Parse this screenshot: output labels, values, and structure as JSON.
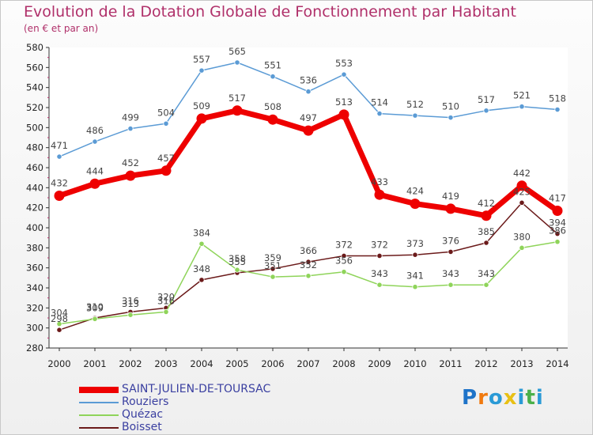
{
  "header": {
    "title": "Evolution de la Dotation Globale de Fonctionnement par Habitant",
    "subtitle": "(en € et par an)"
  },
  "logo": {
    "letters": [
      "P",
      "r",
      "o",
      "x",
      "i",
      "t",
      "i"
    ],
    "colors": [
      "#1e73c8",
      "#f07a10",
      "#2a9ad6",
      "#e8c014",
      "#2a9ad6",
      "#4ab04a",
      "#2a9ad6"
    ]
  },
  "chart_data": {
    "type": "line",
    "title": "Evolution de la Dotation Globale de Fonctionnement par Habitant",
    "subtitle": "(en € et par an)",
    "x": [
      "2000",
      "2001",
      "2002",
      "2003",
      "2004",
      "2005",
      "2006",
      "2007",
      "2008",
      "2009",
      "2010",
      "2011",
      "2012",
      "2013",
      "2014"
    ],
    "ylim": [
      280,
      580
    ],
    "yticks": [
      280,
      300,
      320,
      340,
      360,
      380,
      400,
      420,
      440,
      460,
      480,
      500,
      520,
      540,
      560,
      580
    ],
    "grid": false,
    "legend_position": "bottom-left",
    "series": [
      {
        "name": "SAINT-JULIEN-DE-TOURSAC",
        "color": "#ee0000",
        "values": [
          432,
          444,
          452,
          457,
          509,
          517,
          508,
          497,
          513,
          433,
          424,
          419,
          412,
          442,
          417
        ]
      },
      {
        "name": "Rouziers",
        "color": "#5b9bd5",
        "values": [
          471,
          486,
          499,
          504,
          557,
          565,
          551,
          536,
          553,
          514,
          512,
          510,
          517,
          521,
          518
        ]
      },
      {
        "name": "Quézac",
        "color": "#8fd45a",
        "values": [
          304,
          309,
          313,
          316,
          384,
          358,
          351,
          352,
          356,
          343,
          341,
          343,
          343,
          380,
          386
        ]
      },
      {
        "name": "Boisset",
        "color": "#6b1a1a",
        "values": [
          298,
          310,
          316,
          320,
          348,
          355,
          359,
          366,
          372,
          372,
          373,
          376,
          385,
          425,
          394
        ]
      }
    ]
  }
}
